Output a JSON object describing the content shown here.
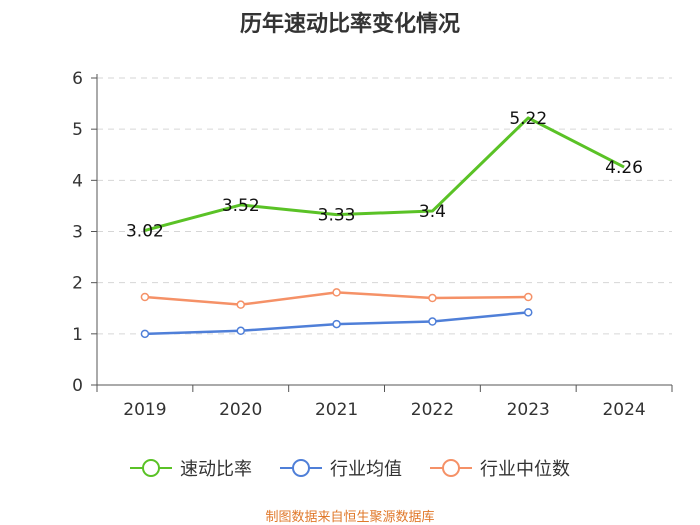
{
  "chart_data": {
    "type": "line",
    "title": "历年速动比率变化情况",
    "categories": [
      "2019",
      "2020",
      "2021",
      "2022",
      "2023",
      "2024"
    ],
    "y_ticks": [
      "0",
      "1",
      "2",
      "3",
      "4",
      "5",
      "6"
    ],
    "ylim": [
      0,
      6
    ],
    "xlabel": "",
    "ylabel": "",
    "grid": true,
    "legend_position": "bottom",
    "series": [
      {
        "name": "速动比率",
        "color": "#5ac226",
        "values": [
          3.02,
          3.52,
          3.33,
          3.4,
          5.22,
          4.26
        ],
        "labels": [
          "3.02",
          "3.52",
          "3.33",
          "3.4",
          "5.22",
          "4.26"
        ]
      },
      {
        "name": "行业均值",
        "color": "#4f7fd8",
        "values": [
          1.0,
          1.06,
          1.19,
          1.24,
          1.42,
          null
        ]
      },
      {
        "name": "行业中位数",
        "color": "#f59167",
        "values": [
          1.72,
          1.57,
          1.81,
          1.7,
          1.72,
          null
        ]
      }
    ]
  },
  "source": "制图数据来自恒生聚源数据库"
}
